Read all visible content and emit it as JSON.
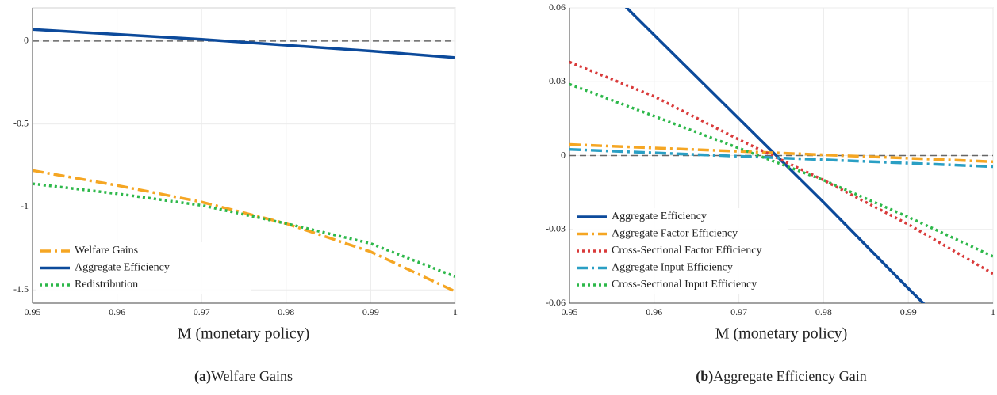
{
  "chart_data": [
    {
      "type": "line",
      "x": [
        0.95,
        0.96,
        0.97,
        0.98,
        0.99,
        1
      ],
      "series": [
        {
          "name": "Welfare Gains",
          "color": "#f5a623",
          "style": "dashdot",
          "values": [
            -0.78,
            -0.87,
            -0.97,
            -1.1,
            -1.27,
            -1.51
          ]
        },
        {
          "name": "Aggregate Efficiency",
          "color": "#0c4a9b",
          "style": "solid",
          "values": [
            0.07,
            0.04,
            0.01,
            -0.025,
            -0.06,
            -0.1
          ]
        },
        {
          "name": "Redistribution",
          "color": "#2db84a",
          "style": "dotted",
          "values": [
            -0.86,
            -0.92,
            -0.99,
            -1.1,
            -1.22,
            -1.42
          ]
        }
      ],
      "xlim": [
        0.95,
        1
      ],
      "ylim": [
        -1.58,
        0.2
      ],
      "xticks": [
        0.95,
        0.96,
        0.97,
        0.98,
        0.99,
        1
      ],
      "yticks": [
        -1.5,
        -1,
        -0.5,
        0
      ],
      "hline": 0,
      "grid": true,
      "legend": "lower left",
      "xlabel": "M (monetary policy)",
      "caption_label": "(a)",
      "caption": "Welfare Gains"
    },
    {
      "type": "line",
      "x": [
        0.95,
        0.96,
        0.97,
        0.98,
        0.99,
        1
      ],
      "series": [
        {
          "name": "Aggregate Efficiency",
          "color": "#0c4a9b",
          "style": "solid",
          "values": [
            0.083,
            0.049,
            0.015,
            -0.019,
            -0.054,
            -0.088
          ]
        },
        {
          "name": "Aggregate Factor Efficiency",
          "color": "#f5a623",
          "style": "dashdot",
          "values": [
            0.0045,
            0.0031,
            0.0017,
            0.0003,
            -0.0011,
            -0.0025
          ]
        },
        {
          "name": "Cross-Sectional Factor Efficiency",
          "color": "#d93a3a",
          "style": "dotted",
          "values": [
            0.038,
            0.024,
            0.0065,
            -0.01,
            -0.028,
            -0.048
          ]
        },
        {
          "name": "Aggregate Input Efficiency",
          "color": "#2a9fc4",
          "style": "dashdot",
          "values": [
            0.0025,
            0.0011,
            -0.0003,
            -0.0017,
            -0.0031,
            -0.0045
          ]
        },
        {
          "name": "Cross-Sectional Input Efficiency",
          "color": "#2db84a",
          "style": "dotted",
          "values": [
            0.029,
            0.016,
            0.003,
            -0.01,
            -0.025,
            -0.041
          ]
        }
      ],
      "xlim": [
        0.95,
        1
      ],
      "ylim": [
        -0.06,
        0.06
      ],
      "xticks": [
        0.95,
        0.96,
        0.97,
        0.98,
        0.99,
        1
      ],
      "yticks": [
        -0.06,
        -0.03,
        0,
        0.03,
        0.06
      ],
      "hline": 0,
      "grid": true,
      "legend": "lower left",
      "xlabel": "M (monetary policy)",
      "caption_label": "(b)",
      "caption": "Aggregate Efficiency Gain"
    }
  ]
}
